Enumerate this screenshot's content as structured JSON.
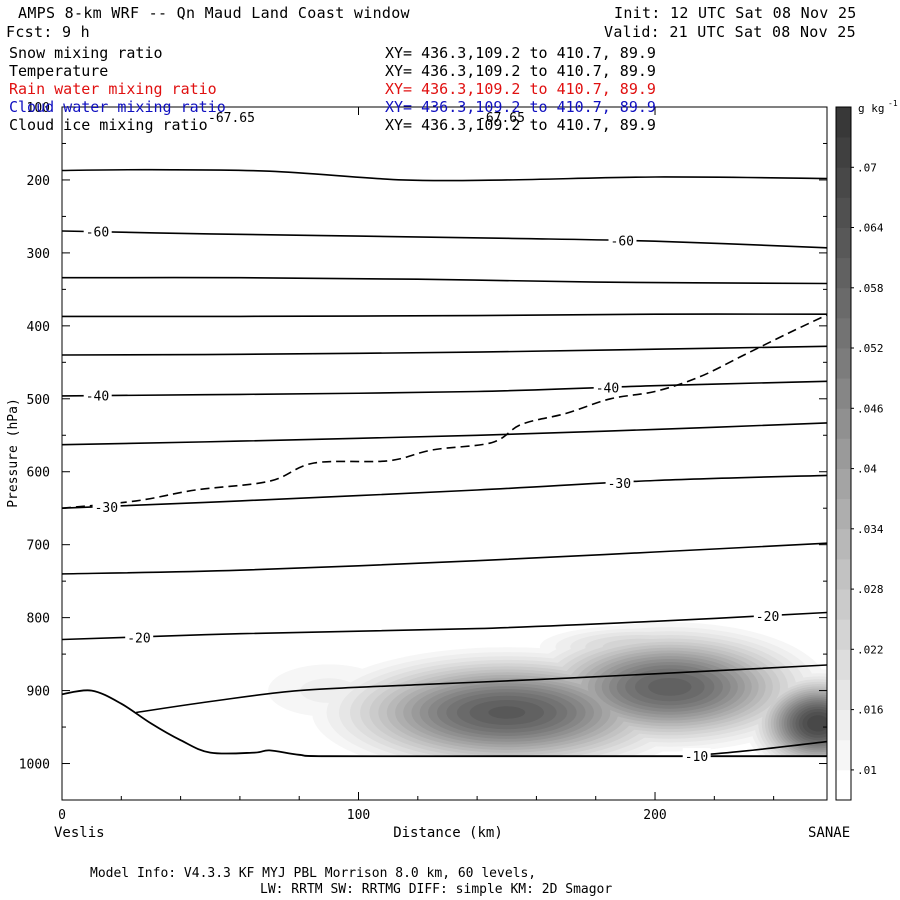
{
  "header": {
    "title": "AMPS 8-km WRF -- Qn Maud Land Coast window",
    "fcst": "Fcst:    9 h",
    "init": "Init: 12 UTC Sat 08 Nov 25",
    "valid": "Valid: 21 UTC Sat 08 Nov 25"
  },
  "fields": [
    {
      "name": "Snow mixing ratio",
      "xy": "XY= 436.3,109.2 to 410.7, 89.9",
      "color": "#000000"
    },
    {
      "name": "Temperature",
      "xy": "XY= 436.3,109.2 to 410.7, 89.9",
      "color": "#000000"
    },
    {
      "name": "Rain water mixing ratio",
      "xy": "XY= 436.3,109.2 to 410.7, 89.9",
      "color": "#e01010"
    },
    {
      "name": "Cloud water mixing ratio",
      "xy": "XY= 436.3,109.2 to 410.7, 89.9",
      "color": "#1010c0"
    },
    {
      "name": "Cloud ice mixing ratio",
      "xy": "XY= 436.3,109.2 to 410.7, 89.9",
      "color": "#000000"
    }
  ],
  "footer": {
    "line1": "Model Info: V4.3.3   KF      MYJ PBL  Morrison             8.0 km,  60 levels,",
    "line2": "LW: RRTM SW: RRTMG   DIFF: simple KM: 2D Smagor"
  },
  "chart_data": {
    "type": "contour",
    "xlabel": "Distance (km)",
    "ylabel": "Pressure (hPa)",
    "xlim": [
      0,
      258
    ],
    "ylim": [
      1050,
      100
    ],
    "x_ticks": [
      0,
      100,
      200
    ],
    "y_ticks": [
      100,
      200,
      300,
      400,
      500,
      600,
      700,
      800,
      900,
      1000
    ],
    "x_endpoints": {
      "left": "Veslis",
      "right": "SANAE"
    },
    "colorbar": {
      "unit_label": "g kg",
      "unit_exp": "-1",
      "tick_labels": [
        ".01",
        ".016",
        ".022",
        ".028",
        ".034",
        ".04",
        ".046",
        ".052",
        ".058",
        ".064",
        ".07"
      ],
      "bounds": [
        0.007,
        0.01,
        0.013,
        0.016,
        0.019,
        0.022,
        0.025,
        0.028,
        0.031,
        0.034,
        0.037,
        0.04,
        0.043,
        0.046,
        0.049,
        0.052,
        0.055,
        0.058,
        0.061,
        0.064,
        0.067,
        0.07,
        0.073,
        0.076
      ],
      "colors": [
        "#ffffff",
        "#f6f6f6",
        "#eeeeee",
        "#e6e6e6",
        "#dddddd",
        "#d4d4d4",
        "#cbcbcb",
        "#c2c2c2",
        "#b8b8b8",
        "#aeaeae",
        "#a4a4a4",
        "#9a9a9a",
        "#909090",
        "#868686",
        "#7c7c7c",
        "#737373",
        "#6a6a6a",
        "#616161",
        "#585858",
        "#505050",
        "#484848",
        "#404040",
        "#383838"
      ]
    },
    "temperature_contours": [
      {
        "label": "",
        "points": [
          [
            0,
            187
          ],
          [
            30,
            186
          ],
          [
            70,
            188
          ],
          [
            115,
            200
          ],
          [
            150,
            200
          ],
          [
            200,
            196
          ],
          [
            258,
            198
          ]
        ]
      },
      {
        "label": "-60",
        "points": [
          [
            0,
            270
          ],
          [
            50,
            274
          ],
          [
            100,
            277
          ],
          [
            150,
            280
          ],
          [
            200,
            284
          ],
          [
            258,
            293
          ]
        ]
      },
      {
        "label": "",
        "points": [
          [
            0,
            334
          ],
          [
            60,
            334
          ],
          [
            120,
            336
          ],
          [
            180,
            340
          ],
          [
            258,
            342
          ]
        ]
      },
      {
        "label": "",
        "points": [
          [
            0,
            387
          ],
          [
            60,
            387
          ],
          [
            140,
            386
          ],
          [
            200,
            384
          ],
          [
            258,
            384
          ]
        ]
      },
      {
        "label": "",
        "points": [
          [
            0,
            440
          ],
          [
            60,
            439
          ],
          [
            140,
            436
          ],
          [
            200,
            432
          ],
          [
            258,
            428
          ]
        ]
      },
      {
        "label": "-40",
        "points": [
          [
            0,
            496
          ],
          [
            60,
            494
          ],
          [
            140,
            490
          ],
          [
            200,
            482
          ],
          [
            258,
            476
          ]
        ]
      },
      {
        "label": "",
        "points": [
          [
            0,
            563
          ],
          [
            60,
            558
          ],
          [
            140,
            550
          ],
          [
            200,
            542
          ],
          [
            258,
            533
          ]
        ]
      },
      {
        "label": "-30",
        "points": [
          [
            0,
            650
          ],
          [
            60,
            640
          ],
          [
            140,
            625
          ],
          [
            200,
            612
          ],
          [
            258,
            605
          ]
        ]
      },
      {
        "label": "",
        "points": [
          [
            0,
            740
          ],
          [
            60,
            735
          ],
          [
            140,
            722
          ],
          [
            200,
            710
          ],
          [
            258,
            698
          ]
        ]
      },
      {
        "label": "-20",
        "points": [
          [
            0,
            830
          ],
          [
            60,
            822
          ],
          [
            140,
            815
          ],
          [
            200,
            805
          ],
          [
            258,
            793
          ]
        ]
      },
      {
        "label": "",
        "points": [
          [
            25,
            930
          ],
          [
            50,
            915
          ],
          [
            80,
            900
          ],
          [
            120,
            892
          ],
          [
            160,
            885
          ],
          [
            200,
            877
          ],
          [
            258,
            865
          ]
        ]
      },
      {
        "label": "-10",
        "points": [
          [
            210,
            990
          ],
          [
            230,
            983
          ],
          [
            258,
            970
          ]
        ]
      }
    ],
    "tropopause_dashed": [
      [
        0,
        650
      ],
      [
        25,
        640
      ],
      [
        45,
        625
      ],
      [
        70,
        613
      ],
      [
        85,
        588
      ],
      [
        110,
        585
      ],
      [
        125,
        570
      ],
      [
        145,
        560
      ],
      [
        155,
        535
      ],
      [
        170,
        520
      ],
      [
        185,
        500
      ],
      [
        200,
        490
      ],
      [
        215,
        470
      ],
      [
        230,
        440
      ],
      [
        245,
        410
      ],
      [
        258,
        385
      ]
    ],
    "terrain_profile": [
      [
        0,
        905
      ],
      [
        10,
        900
      ],
      [
        20,
        918
      ],
      [
        30,
        945
      ],
      [
        40,
        968
      ],
      [
        50,
        985
      ],
      [
        65,
        985
      ],
      [
        70,
        982
      ],
      [
        80,
        988
      ],
      [
        90,
        990
      ],
      [
        150,
        990
      ],
      [
        200,
        990
      ],
      [
        258,
        990
      ]
    ],
    "top_labels": [
      "-67.65",
      "-67.65"
    ],
    "snow_mixing_ratio_blobs": [
      {
        "cx": 150,
        "cp": 930,
        "rx": 55,
        "rp": 75,
        "peak": 0.062
      },
      {
        "cx": 205,
        "cp": 895,
        "rx": 45,
        "rp": 75,
        "peak": 0.06
      },
      {
        "cx": 255,
        "cp": 945,
        "rx": 20,
        "rp": 60,
        "peak": 0.07
      },
      {
        "cx": 195,
        "cp": 840,
        "rx": 40,
        "rp": 35,
        "peak": 0.025
      },
      {
        "cx": 90,
        "cp": 900,
        "rx": 40,
        "rp": 70,
        "peak": 0.014
      }
    ]
  }
}
